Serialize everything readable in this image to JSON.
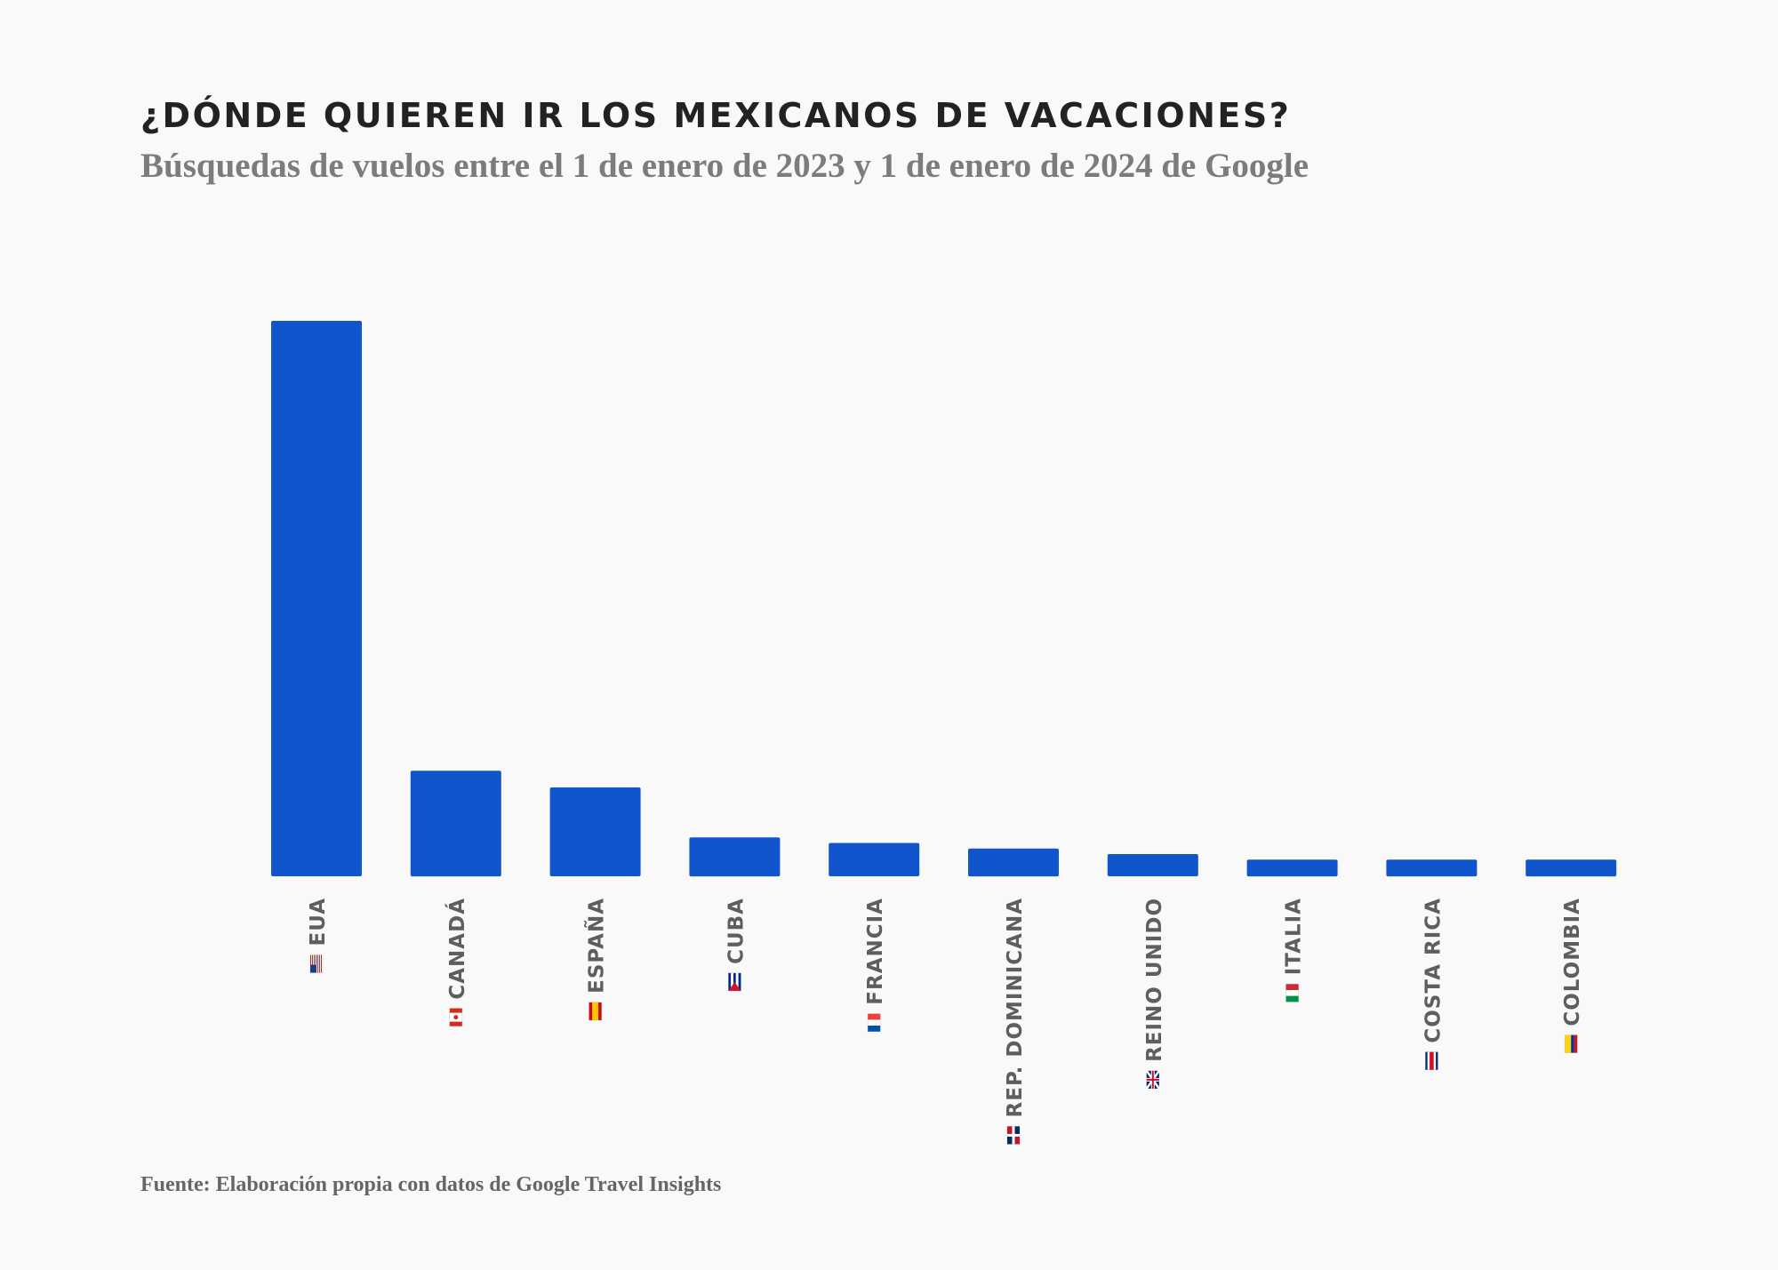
{
  "header": {
    "title": "¿DÓNDE QUIEREN IR LOS MEXICANOS DE VACACIONES?",
    "subtitle": "Búsquedas de vuelos entre el 1 de enero de 2023 y 1 de enero de 2024 de Google"
  },
  "footer": {
    "source": "Fuente: Elaboración propia con datos de Google Travel Insights"
  },
  "colors": {
    "bar": "#1155cc",
    "label": "#5e5e5e"
  },
  "chart_data": {
    "type": "bar",
    "title": "¿DÓNDE QUIEREN IR LOS MEXICANOS DE VACACIONES?",
    "subtitle": "Búsquedas de vuelos entre el 1 de enero de 2023 y 1 de enero de 2024 de Google",
    "categories": [
      "EUA",
      "CANADÁ",
      "ESPAÑA",
      "CUBA",
      "FRANCIA",
      "REP. DOMINICANA",
      "REINO UNIDO",
      "ITALIA",
      "COSTA RICA",
      "COLOMBIA"
    ],
    "flags": [
      "flag-usa-icon",
      "flag-canada-icon",
      "flag-spain-icon",
      "flag-cuba-icon",
      "flag-france-icon",
      "flag-dominican-republic-icon",
      "flag-uk-icon",
      "flag-italy-icon",
      "flag-costa-rica-icon",
      "flag-colombia-icon"
    ],
    "values": [
      100,
      19,
      16,
      7,
      6,
      5,
      4,
      3,
      3,
      3
    ],
    "xlabel": "",
    "ylabel": "",
    "ylim": [
      0,
      100
    ],
    "grid": false,
    "label_orientation": "vertical"
  }
}
